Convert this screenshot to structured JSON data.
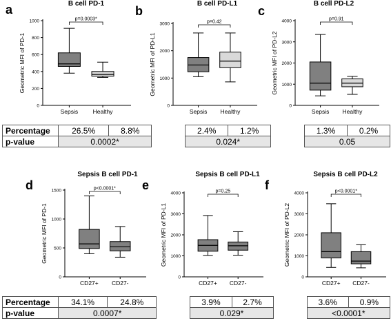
{
  "panels": [
    {
      "letter": "a",
      "title": "B cell PD-1"
    },
    {
      "letter": "b",
      "title": "B cell PD-L1"
    },
    {
      "letter": "c",
      "title": "B cell PD-L2"
    },
    {
      "letter": "d",
      "title": "Sepsis B cell PD-1"
    },
    {
      "letter": "e",
      "title": "Sepsis B cell PD-L1"
    },
    {
      "letter": "f",
      "title": "Sepsis B cell PD-L2"
    }
  ],
  "tables": [
    {
      "percentage_label": "Percentage",
      "pvalue_label": "p-value",
      "groups": [
        {
          "pct": [
            "26.5%",
            "8.8%"
          ],
          "p": "0.0002*"
        },
        {
          "pct": [
            "2.4%",
            "1.2%"
          ],
          "p": "0.024*"
        },
        {
          "pct": [
            "1.3%",
            "0.2%"
          ],
          "p": "0.05"
        }
      ]
    },
    {
      "percentage_label": "Percentage",
      "pvalue_label": "p-value",
      "groups": [
        {
          "pct": [
            "34.1%",
            "24.8%"
          ],
          "p": "0.0007*"
        },
        {
          "pct": [
            "3.9%",
            "2.7%"
          ],
          "p": "0.029*"
        },
        {
          "pct": [
            "3.6%",
            "0.9%"
          ],
          "p": "<0.0001*"
        }
      ]
    }
  ],
  "chart_data": [
    {
      "type": "box",
      "title": "B cell PD-1",
      "ylabel": "Geometric MFI of PD-1",
      "ylim": [
        0,
        1000
      ],
      "yticks": [
        0,
        200,
        400,
        600,
        800,
        1000
      ],
      "categories": [
        "Sepsis",
        "Healthy"
      ],
      "boxes": [
        {
          "category": "Sepsis",
          "min": 380,
          "q1": 460,
          "median": 490,
          "q3": 620,
          "max": 910,
          "color": "#808080"
        },
        {
          "category": "Healthy",
          "min": 330,
          "q1": 345,
          "median": 365,
          "q3": 400,
          "max": 510,
          "color": "#d9d9d9"
        }
      ],
      "annotation": "p=0.0003*"
    },
    {
      "type": "box",
      "title": "B cell PD-L1",
      "ylabel": "Geometric MFI of PD-L1",
      "ylim": [
        0,
        3000
      ],
      "yticks": [
        0,
        1000,
        2000,
        3000
      ],
      "categories": [
        "Sepsis",
        "Healthy"
      ],
      "boxes": [
        {
          "category": "Sepsis",
          "min": 1050,
          "q1": 1230,
          "median": 1480,
          "q3": 1750,
          "max": 2650,
          "color": "#808080"
        },
        {
          "category": "Healthy",
          "min": 860,
          "q1": 1380,
          "median": 1620,
          "q3": 1950,
          "max": 2650,
          "color": "#d9d9d9"
        }
      ],
      "annotation": "p=0.42"
    },
    {
      "type": "box",
      "title": "B cell PD-L2",
      "ylabel": "Geometric MFI of PD-L2",
      "ylim": [
        0,
        4000
      ],
      "yticks": [
        0,
        1000,
        2000,
        3000,
        4000
      ],
      "categories": [
        "Sepsis",
        "Healthy"
      ],
      "boxes": [
        {
          "category": "Sepsis",
          "min": 450,
          "q1": 720,
          "median": 1050,
          "q3": 2050,
          "max": 3350,
          "color": "#808080"
        },
        {
          "category": "Healthy",
          "min": 520,
          "q1": 880,
          "median": 1050,
          "q3": 1250,
          "max": 1370,
          "color": "#d9d9d9"
        }
      ],
      "annotation": "p=0.91"
    },
    {
      "type": "box",
      "title": "Sepsis B cell PD-1",
      "ylabel": "Geometric MFI of PD-1",
      "ylim": [
        0,
        1500
      ],
      "yticks": [
        0,
        500,
        1000,
        1500
      ],
      "categories": [
        "CD27+",
        "CD27-"
      ],
      "boxes": [
        {
          "category": "CD27+",
          "min": 400,
          "q1": 490,
          "median": 570,
          "q3": 820,
          "max": 1400,
          "color": "#808080"
        },
        {
          "category": "CD27-",
          "min": 340,
          "q1": 450,
          "median": 520,
          "q3": 610,
          "max": 870,
          "color": "#808080"
        }
      ],
      "annotation": "p<0.0001*"
    },
    {
      "type": "box",
      "title": "Sepsis B cell PD-L1",
      "ylabel": "Geometric MFI of PD-L1",
      "ylim": [
        0,
        4000
      ],
      "yticks": [
        0,
        1000,
        2000,
        3000,
        4000
      ],
      "categories": [
        "CD27+",
        "CD27-"
      ],
      "boxes": [
        {
          "category": "CD27+",
          "min": 1020,
          "q1": 1220,
          "median": 1500,
          "q3": 1770,
          "max": 2920,
          "color": "#808080"
        },
        {
          "category": "CD27-",
          "min": 1030,
          "q1": 1270,
          "median": 1480,
          "q3": 1660,
          "max": 2150,
          "color": "#808080"
        }
      ],
      "annotation": "p=0.25"
    },
    {
      "type": "box",
      "title": "Sepsis B cell PD-L2",
      "ylabel": "Geometric MFI of PD-L2",
      "ylim": [
        0,
        4000
      ],
      "yticks": [
        0,
        1000,
        2000,
        3000,
        4000
      ],
      "categories": [
        "CD27+",
        "CD27-"
      ],
      "boxes": [
        {
          "category": "CD27+",
          "min": 450,
          "q1": 900,
          "median": 1200,
          "q3": 2100,
          "max": 3480,
          "color": "#808080"
        },
        {
          "category": "CD27-",
          "min": 430,
          "q1": 620,
          "median": 750,
          "q3": 1200,
          "max": 1530,
          "color": "#808080"
        }
      ],
      "annotation": "p<0.0001*"
    }
  ]
}
